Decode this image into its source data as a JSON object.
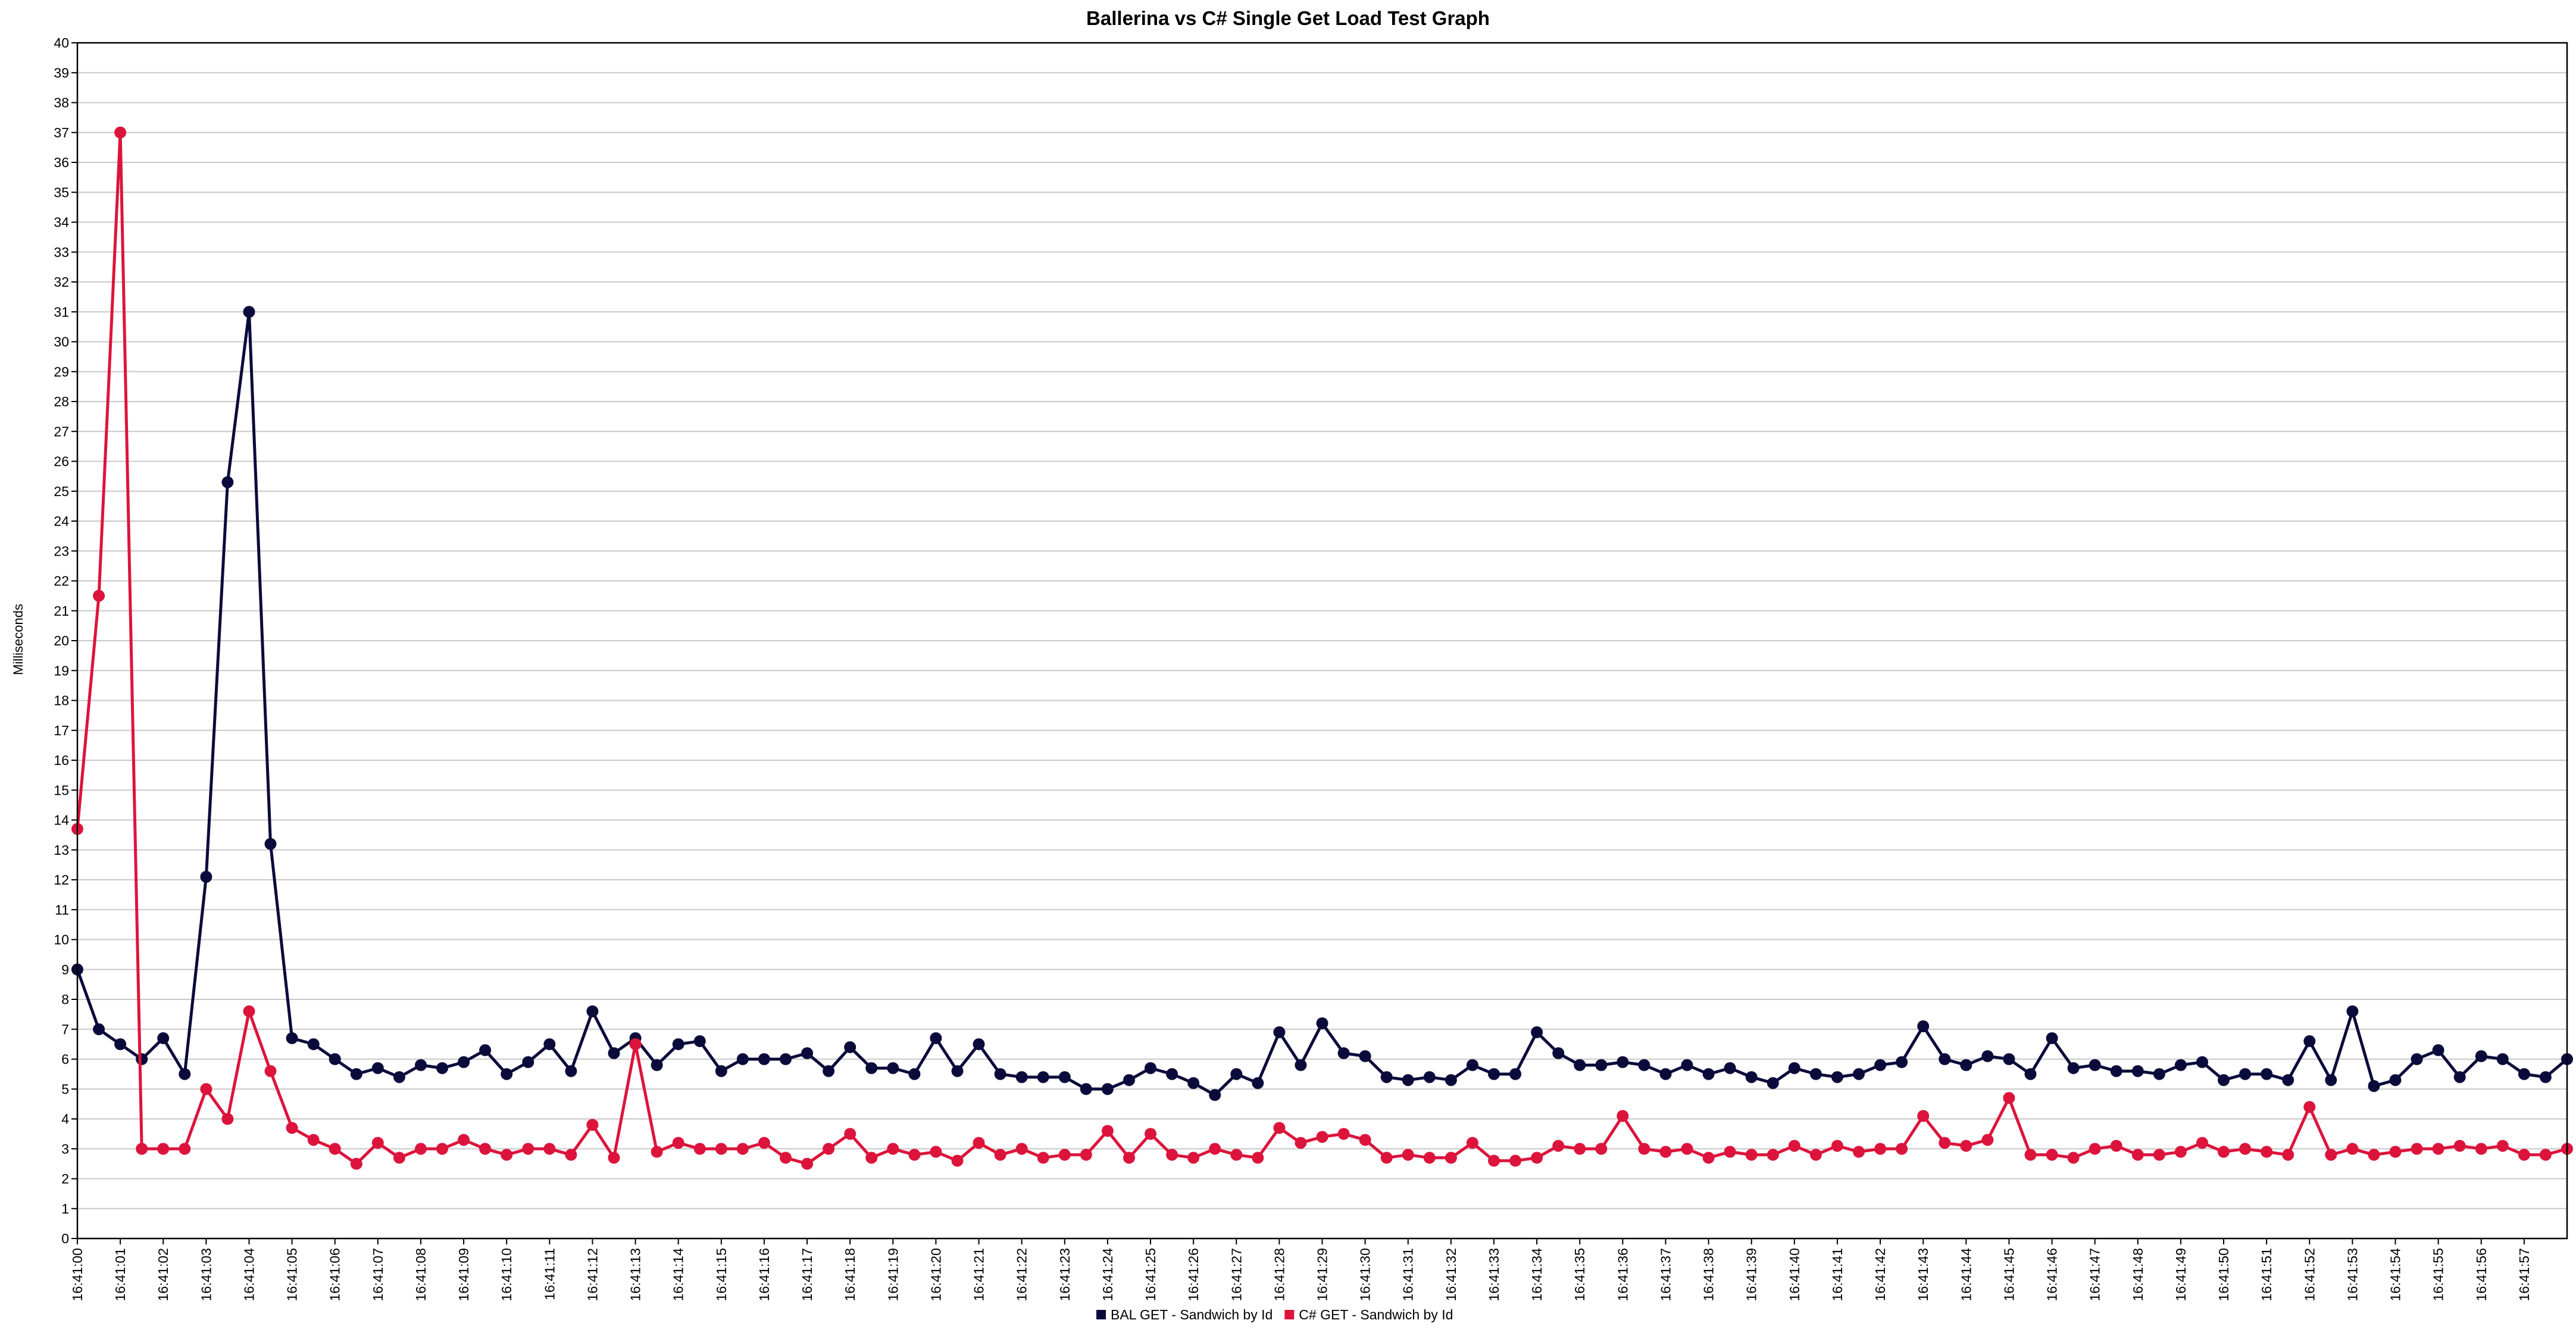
{
  "chart_data": {
    "type": "line",
    "title": "Ballerina vs C# Single Get Load Test Graph",
    "xlabel": "",
    "ylabel": "Milliseconds",
    "ylim": [
      0,
      40
    ],
    "y_ticks": [
      0,
      1,
      2,
      3,
      4,
      5,
      6,
      7,
      8,
      9,
      10,
      11,
      12,
      13,
      14,
      15,
      16,
      17,
      18,
      19,
      20,
      21,
      22,
      23,
      24,
      25,
      26,
      27,
      28,
      29,
      30,
      31,
      32,
      33,
      34,
      35,
      36,
      37,
      38,
      39,
      40
    ],
    "x_tick_labels": [
      "16:41:00",
      "16:41:01",
      "16:41:02",
      "16:41:03",
      "16:41:04",
      "16:41:05",
      "16:41:06",
      "16:41:07",
      "16:41:08",
      "16:41:09",
      "16:41:10",
      "16:41:11",
      "16:41:12",
      "16:41:13",
      "16:41:14",
      "16:41:15",
      "16:41:16",
      "16:41:17",
      "16:41:18",
      "16:41:19",
      "16:41:20",
      "16:41:21",
      "16:41:22",
      "16:41:23",
      "16:41:24",
      "16:41:25",
      "16:41:26",
      "16:41:27",
      "16:41:28",
      "16:41:29",
      "16:41:30",
      "16:41:31",
      "16:41:32",
      "16:41:33",
      "16:41:34",
      "16:41:35",
      "16:41:36",
      "16:41:37",
      "16:41:38",
      "16:41:39",
      "16:41:40",
      "16:41:41",
      "16:41:42",
      "16:41:43",
      "16:41:44",
      "16:41:45",
      "16:41:46",
      "16:41:47",
      "16:41:48",
      "16:41:49",
      "16:41:50",
      "16:41:51",
      "16:41:52",
      "16:41:53",
      "16:41:54",
      "16:41:55",
      "16:41:56",
      "16:41:57"
    ],
    "points_per_second": 2,
    "x_time_seconds_domain": [
      0,
      58
    ],
    "grid": true,
    "legend_position": "bottom-center",
    "series": [
      {
        "name": "BAL GET - Sandwich by Id",
        "color": "#0b0b3b",
        "values": [
          9.0,
          7.0,
          6.5,
          6.0,
          6.7,
          5.5,
          12.1,
          25.3,
          31.0,
          13.2,
          6.7,
          6.5,
          6.0,
          5.5,
          5.7,
          5.4,
          5.8,
          5.7,
          5.9,
          6.3,
          5.5,
          5.9,
          6.5,
          5.6,
          7.6,
          6.2,
          6.7,
          5.8,
          6.5,
          6.6,
          5.6,
          6.0,
          6.0,
          6.0,
          6.2,
          5.6,
          6.4,
          5.7,
          5.7,
          5.5,
          6.7,
          5.6,
          6.5,
          5.5,
          5.4,
          5.4,
          5.4,
          5.0,
          5.0,
          5.3,
          5.7,
          5.5,
          5.2,
          4.8,
          5.5,
          5.2,
          6.9,
          5.8,
          7.2,
          6.2,
          6.1,
          5.4,
          5.3,
          5.4,
          5.3,
          5.8,
          5.5,
          5.5,
          6.9,
          6.2,
          5.8,
          5.8,
          5.9,
          5.8,
          5.5,
          5.8,
          5.5,
          5.7,
          5.4,
          5.2,
          5.7,
          5.5,
          5.4,
          5.5,
          5.8,
          5.9,
          7.1,
          6.0,
          5.8,
          6.1,
          6.0,
          5.5,
          6.7,
          5.7,
          5.8,
          5.6,
          5.6,
          5.5,
          5.8,
          5.9,
          5.3,
          5.5,
          5.5,
          5.3,
          6.6,
          5.3,
          7.6,
          5.1,
          5.3,
          6.0,
          6.3,
          5.4,
          6.1,
          6.0,
          5.5,
          5.4,
          6.0
        ]
      },
      {
        "name": "C# GET - Sandwich by Id",
        "color": "#dc143c",
        "values": [
          13.7,
          21.5,
          37.0,
          3.0,
          3.0,
          3.0,
          5.0,
          4.0,
          7.6,
          5.6,
          3.7,
          3.3,
          3.0,
          2.5,
          3.2,
          2.7,
          3.0,
          3.0,
          3.3,
          3.0,
          2.8,
          3.0,
          3.0,
          2.8,
          3.8,
          2.7,
          6.5,
          2.9,
          3.2,
          3.0,
          3.0,
          3.0,
          3.2,
          2.7,
          2.5,
          3.0,
          3.5,
          2.7,
          3.0,
          2.8,
          2.9,
          2.6,
          3.2,
          2.8,
          3.0,
          2.7,
          2.8,
          2.8,
          3.6,
          2.7,
          3.5,
          2.8,
          2.7,
          3.0,
          2.8,
          2.7,
          3.7,
          3.2,
          3.4,
          3.5,
          3.3,
          2.7,
          2.8,
          2.7,
          2.7,
          3.2,
          2.6,
          2.6,
          2.7,
          3.1,
          3.0,
          3.0,
          4.1,
          3.0,
          2.9,
          3.0,
          2.7,
          2.9,
          2.8,
          2.8,
          3.1,
          2.8,
          3.1,
          2.9,
          3.0,
          3.0,
          4.1,
          3.2,
          3.1,
          3.3,
          4.7,
          2.8,
          2.8,
          2.7,
          3.0,
          3.1,
          2.8,
          2.8,
          2.9,
          3.2,
          2.9,
          3.0,
          2.9,
          2.8,
          4.4,
          2.8,
          3.0,
          2.8,
          2.9,
          3.0,
          3.0,
          3.1,
          3.0,
          3.1,
          2.8,
          2.8,
          3.0
        ]
      }
    ]
  }
}
